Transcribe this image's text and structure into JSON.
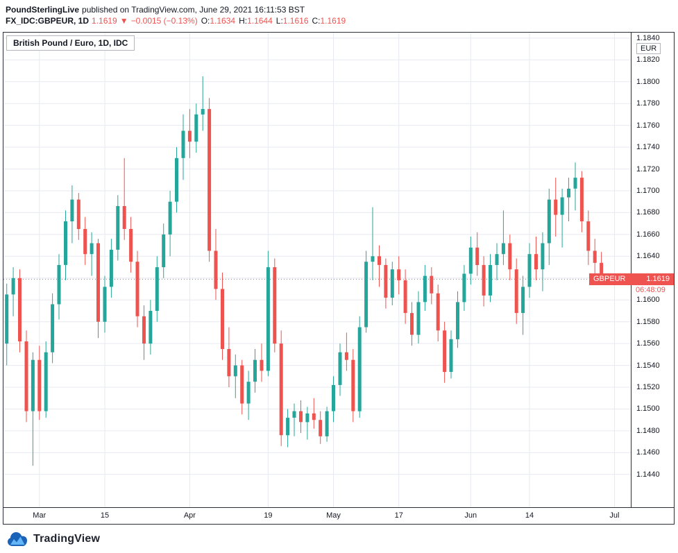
{
  "header": {
    "publisher": "PoundSterlingLive",
    "publish_info": "published on TradingView.com, June 29, 2021 16:11:53 BST",
    "symbol": "FX_IDC:GBPEUR, 1D",
    "price": "1.1619",
    "direction": "▼",
    "change": "−0.0015 (−0.13%)",
    "open_label": "O:",
    "open": "1.1634",
    "high_label": "H:",
    "high": "1.1644",
    "low_label": "L:",
    "low": "1.1616",
    "close_label": "C:",
    "close": "1.1619"
  },
  "chart": {
    "legend": "British Pound / Euro, 1D, IDC",
    "axis_currency": "EUR",
    "price_flag": {
      "symbol": "GBPEUR",
      "price": "1.1619",
      "countdown": "06:48:09"
    }
  },
  "footer": {
    "brand": "TradingView"
  },
  "colors": {
    "up": "#26a69a",
    "down": "#ef5350",
    "grid": "#e6e9f0",
    "axis_text": "#131722",
    "frame_border": "#2a2e39",
    "price_flag_bg": "#ef5350",
    "red_text": "#ef5350",
    "brand_navy": "#1a63b8",
    "brand_light_blue": "#64b5f6"
  },
  "chart_data": {
    "type": "candlestick",
    "title": "British Pound / Euro, 1D, IDC",
    "symbol": "FX_IDC:GBPEUR",
    "interval": "1D",
    "last_price": 1.1619,
    "price_axis": {
      "top": 1.1845,
      "bottom": 1.141,
      "tick_step": 0.002,
      "tick_values": [
        1.184,
        1.182,
        1.18,
        1.178,
        1.176,
        1.174,
        1.172,
        1.17,
        1.168,
        1.166,
        1.164,
        1.162,
        1.16,
        1.158,
        1.156,
        1.154,
        1.152,
        1.15,
        1.148,
        1.146,
        1.144
      ]
    },
    "time_axis": {
      "slots": 96,
      "ticks": [
        {
          "label": "Mar",
          "index": 5
        },
        {
          "label": "15",
          "index": 15
        },
        {
          "label": "Apr",
          "index": 28
        },
        {
          "label": "19",
          "index": 40
        },
        {
          "label": "May",
          "index": 50
        },
        {
          "label": "17",
          "index": 60
        },
        {
          "label": "Jun",
          "index": 71
        },
        {
          "label": "14",
          "index": 80
        },
        {
          "label": "Jul",
          "index": 93
        }
      ]
    },
    "candle_format": [
      "date",
      "open",
      "high",
      "low",
      "close"
    ],
    "candles": [
      [
        "Feb 22",
        1.156,
        1.1615,
        1.154,
        1.1605
      ],
      [
        "Feb 23",
        1.1605,
        1.163,
        1.1585,
        1.162
      ],
      [
        "Feb 24",
        1.162,
        1.1628,
        1.1552,
        1.1562
      ],
      [
        "Feb 25",
        1.1562,
        1.1572,
        1.1488,
        1.1498
      ],
      [
        "Feb 26",
        1.1498,
        1.1552,
        1.1448,
        1.1545
      ],
      [
        "Mar 1",
        1.1545,
        1.1558,
        1.149,
        1.1498
      ],
      [
        "Mar 2",
        1.1498,
        1.1562,
        1.1492,
        1.1552
      ],
      [
        "Mar 3",
        1.1552,
        1.1606,
        1.1542,
        1.1596
      ],
      [
        "Mar 4",
        1.1596,
        1.1642,
        1.1582,
        1.1632
      ],
      [
        "Mar 5",
        1.1632,
        1.1682,
        1.1618,
        1.1672
      ],
      [
        "Mar 8",
        1.1672,
        1.1705,
        1.1652,
        1.1692
      ],
      [
        "Mar 9",
        1.1692,
        1.1698,
        1.1655,
        1.1665
      ],
      [
        "Mar 10",
        1.1665,
        1.1676,
        1.1632,
        1.1642
      ],
      [
        "Mar 11",
        1.1642,
        1.1662,
        1.1622,
        1.1652
      ],
      [
        "Mar 12",
        1.1652,
        1.1656,
        1.1565,
        1.158
      ],
      [
        "Mar 15",
        1.158,
        1.1622,
        1.157,
        1.1612
      ],
      [
        "Mar 16",
        1.1612,
        1.1656,
        1.1602,
        1.1646
      ],
      [
        "Mar 17",
        1.1646,
        1.1696,
        1.1636,
        1.1686
      ],
      [
        "Mar 18",
        1.1686,
        1.173,
        1.1655,
        1.1665
      ],
      [
        "Mar 19",
        1.1665,
        1.1676,
        1.1625,
        1.1635
      ],
      [
        "Mar 22",
        1.1635,
        1.1645,
        1.1575,
        1.1585
      ],
      [
        "Mar 23",
        1.1585,
        1.1595,
        1.1545,
        1.156
      ],
      [
        "Mar 24",
        1.156,
        1.16,
        1.155,
        1.159
      ],
      [
        "Mar 25",
        1.159,
        1.164,
        1.158,
        1.163
      ],
      [
        "Mar 26",
        1.163,
        1.167,
        1.162,
        1.166
      ],
      [
        "Mar 29",
        1.166,
        1.17,
        1.164,
        1.169
      ],
      [
        "Mar 30",
        1.169,
        1.174,
        1.168,
        1.173
      ],
      [
        "Mar 31",
        1.173,
        1.177,
        1.171,
        1.1755
      ],
      [
        "Apr 1",
        1.1755,
        1.1775,
        1.173,
        1.1745
      ],
      [
        "Apr 2",
        1.1745,
        1.178,
        1.1735,
        1.177
      ],
      [
        "Apr 5",
        1.177,
        1.1805,
        1.1755,
        1.1775
      ],
      [
        "Apr 6",
        1.1775,
        1.1785,
        1.1635,
        1.1645
      ],
      [
        "Apr 7",
        1.1645,
        1.1665,
        1.16,
        1.161
      ],
      [
        "Apr 8",
        1.161,
        1.1625,
        1.1545,
        1.1555
      ],
      [
        "Apr 9",
        1.1555,
        1.1575,
        1.152,
        1.153
      ],
      [
        "Apr 12",
        1.153,
        1.155,
        1.151,
        1.154
      ],
      [
        "Apr 13",
        1.154,
        1.1545,
        1.1495,
        1.1505
      ],
      [
        "Apr 14",
        1.1505,
        1.1535,
        1.149,
        1.1525
      ],
      [
        "Apr 15",
        1.1525,
        1.1555,
        1.1515,
        1.1545
      ],
      [
        "Apr 16",
        1.1545,
        1.156,
        1.1525,
        1.1535
      ],
      [
        "Apr 19",
        1.1535,
        1.1645,
        1.153,
        1.163
      ],
      [
        "Apr 20",
        1.163,
        1.1638,
        1.1552,
        1.156
      ],
      [
        "Apr 21",
        1.156,
        1.1572,
        1.1466,
        1.1476
      ],
      [
        "Apr 22",
        1.1476,
        1.15,
        1.1465,
        1.1492
      ],
      [
        "Apr 23",
        1.1492,
        1.1505,
        1.1475,
        1.1498
      ],
      [
        "Apr 26",
        1.1498,
        1.1508,
        1.1478,
        1.1488
      ],
      [
        "Apr 27",
        1.1488,
        1.1502,
        1.1472,
        1.1496
      ],
      [
        "Apr 28",
        1.1496,
        1.151,
        1.1482,
        1.149
      ],
      [
        "Apr 29",
        1.149,
        1.1498,
        1.1468,
        1.1475
      ],
      [
        "Apr 30",
        1.1475,
        1.1502,
        1.147,
        1.1498
      ],
      [
        "May 3",
        1.1498,
        1.153,
        1.1488,
        1.1522
      ],
      [
        "May 4",
        1.1522,
        1.156,
        1.1512,
        1.1552
      ],
      [
        "May 5",
        1.1552,
        1.157,
        1.1535,
        1.1545
      ],
      [
        "May 6",
        1.1545,
        1.1555,
        1.1488,
        1.1498
      ],
      [
        "May 7",
        1.1498,
        1.1585,
        1.1492,
        1.1575
      ],
      [
        "May 10",
        1.1575,
        1.1645,
        1.157,
        1.1635
      ],
      [
        "May 11",
        1.1635,
        1.1685,
        1.1618,
        1.164
      ],
      [
        "May 12",
        1.164,
        1.165,
        1.1612,
        1.1632
      ],
      [
        "May 13",
        1.1632,
        1.1638,
        1.1592,
        1.1602
      ],
      [
        "May 14",
        1.1602,
        1.1635,
        1.1595,
        1.1628
      ],
      [
        "May 17",
        1.1628,
        1.164,
        1.1605,
        1.1618
      ],
      [
        "May 18",
        1.1618,
        1.1628,
        1.1578,
        1.1588
      ],
      [
        "May 19",
        1.1588,
        1.1598,
        1.1558,
        1.1568
      ],
      [
        "May 20",
        1.1568,
        1.1608,
        1.156,
        1.1598
      ],
      [
        "May 21",
        1.1598,
        1.1632,
        1.159,
        1.1622
      ],
      [
        "May 24",
        1.1622,
        1.163,
        1.1596,
        1.1606
      ],
      [
        "May 25",
        1.1606,
        1.1614,
        1.1562,
        1.1572
      ],
      [
        "May 26",
        1.1572,
        1.158,
        1.1524,
        1.1534
      ],
      [
        "May 27",
        1.1534,
        1.1572,
        1.1528,
        1.1564
      ],
      [
        "May 28",
        1.1564,
        1.1608,
        1.1556,
        1.1598
      ],
      [
        "May 31",
        1.1598,
        1.1632,
        1.159,
        1.1624
      ],
      [
        "Jun 1",
        1.1624,
        1.1658,
        1.1614,
        1.1648
      ],
      [
        "Jun 2",
        1.1648,
        1.1662,
        1.1622,
        1.1632
      ],
      [
        "Jun 3",
        1.1632,
        1.164,
        1.1594,
        1.1604
      ],
      [
        "Jun 4",
        1.1604,
        1.1642,
        1.1598,
        1.1632
      ],
      [
        "Jun 7",
        1.1632,
        1.1652,
        1.1618,
        1.1642
      ],
      [
        "Jun 8",
        1.1642,
        1.1682,
        1.1632,
        1.1652
      ],
      [
        "Jun 9",
        1.1652,
        1.166,
        1.1618,
        1.1628
      ],
      [
        "Jun 10",
        1.1628,
        1.1638,
        1.1578,
        1.1588
      ],
      [
        "Jun 11",
        1.1588,
        1.1622,
        1.1568,
        1.1612
      ],
      [
        "Jun 14",
        1.1612,
        1.1652,
        1.1602,
        1.1642
      ],
      [
        "Jun 15",
        1.1642,
        1.1658,
        1.1618,
        1.1628
      ],
      [
        "Jun 16",
        1.1628,
        1.1662,
        1.1608,
        1.1652
      ],
      [
        "Jun 17",
        1.1652,
        1.1702,
        1.1632,
        1.1692
      ],
      [
        "Jun 18",
        1.1692,
        1.1712,
        1.1658,
        1.1678
      ],
      [
        "Jun 21",
        1.1678,
        1.1702,
        1.1648,
        1.1694
      ],
      [
        "Jun 22",
        1.1694,
        1.1712,
        1.1672,
        1.1702
      ],
      [
        "Jun 23",
        1.1702,
        1.1726,
        1.1682,
        1.1712
      ],
      [
        "Jun 24",
        1.1712,
        1.1718,
        1.1662,
        1.1672
      ],
      [
        "Jun 25",
        1.1672,
        1.1682,
        1.1632,
        1.1645
      ],
      [
        "Jun 28",
        1.1645,
        1.1656,
        1.1614,
        1.1634
      ],
      [
        "Jun 29",
        1.1634,
        1.1644,
        1.1616,
        1.1619
      ]
    ]
  }
}
